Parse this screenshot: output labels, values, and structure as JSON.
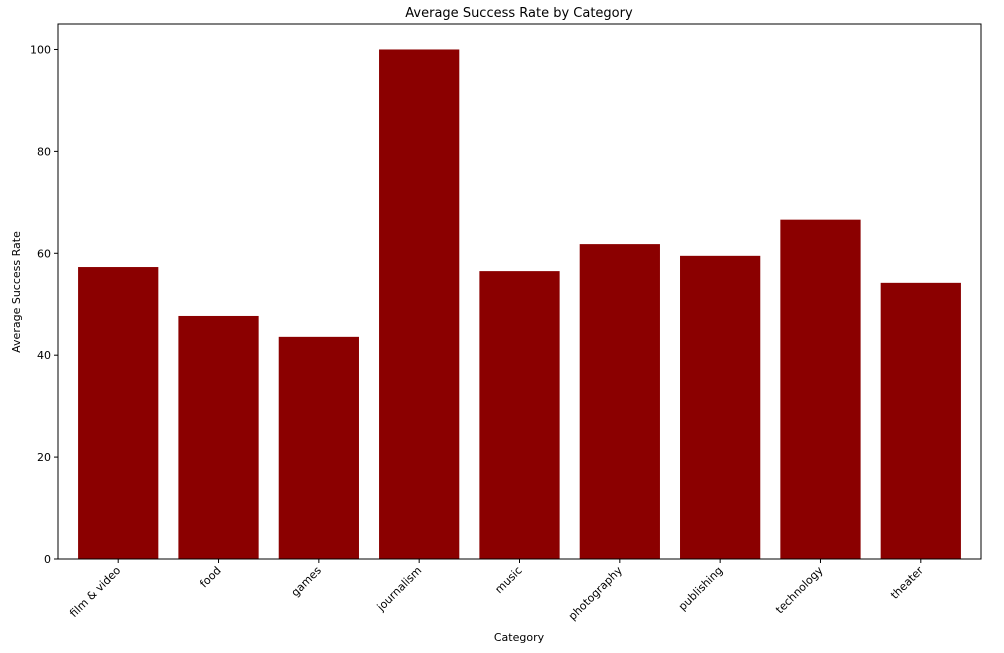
{
  "chart_data": {
    "type": "bar",
    "title": "Average Success Rate by Category",
    "xlabel": "Category",
    "ylabel": "Average Success Rate",
    "categories": [
      "film & video",
      "food",
      "games",
      "journalism",
      "music",
      "photography",
      "publishing",
      "technology",
      "theater"
    ],
    "values": [
      57.3,
      47.7,
      43.6,
      100.0,
      56.5,
      61.8,
      59.5,
      66.6,
      54.2
    ],
    "ylim": [
      0,
      105
    ],
    "yticks": [
      0,
      20,
      40,
      60,
      80,
      100
    ],
    "grid": false,
    "legend": "none",
    "bar_color": "#8b0000"
  }
}
